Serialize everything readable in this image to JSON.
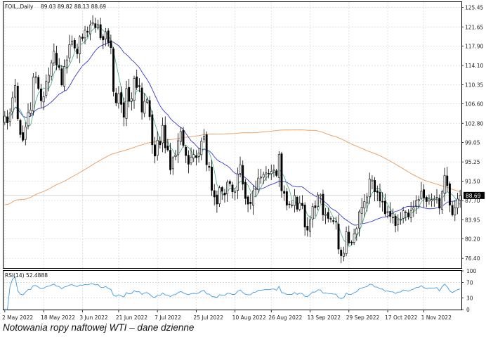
{
  "chart_data": [
    {
      "type": "candlestick",
      "info": {
        "symbol": "FOIL,,Daily",
        "ohlc": "89.03 89.82 88.13 88.69"
      },
      "y_ticks": [
        "125.45",
        "121.65",
        "117.90",
        "114.10",
        "110.35",
        "106.60",
        "102.80",
        "99.05",
        "95.25",
        "91.50",
        "87.70",
        "83.95",
        "80.20",
        "76.40"
      ],
      "ylim": [
        74.5,
        126.5
      ],
      "last_price_label": "88.69",
      "x_labels": [
        "2 May 2022",
        "18 May 2022",
        "3 Jun 2022",
        "21 Jun 2022",
        "7 Jul 2022",
        "25 Jul 2022",
        "10 Aug 2022",
        "26 Aug 2022",
        "13 Sep 2022",
        "29 Sep 2022",
        "17 Oct 2022",
        "1 Nov 2022"
      ],
      "close": [
        104.2,
        102.9,
        104.8,
        107.8,
        110.2,
        103.7,
        100.6,
        99.5,
        102.1,
        104.9,
        105.4,
        111.8,
        111.9,
        109.6,
        107.2,
        108.0,
        111.0,
        112.2,
        114.6,
        116.9,
        114.2,
        113.7,
        110.3,
        113.9,
        115.2,
        118.2,
        118.9,
        117.5,
        116.4,
        119.7,
        119.4,
        121.0,
        120.6,
        122.0,
        122.5,
        121.5,
        122.1,
        119.5,
        119.1,
        120.7,
        118.6,
        117.6,
        109.0,
        106.8,
        108.6,
        106.5,
        104.0,
        109.6,
        107.1,
        107.6,
        111.6,
        109.8,
        110.0,
        105.0,
        107.1,
        107.5,
        104.1,
        98.6,
        96.4,
        99.5,
        98.6,
        102.4,
        98.0,
        97.6,
        93.7,
        96.1,
        96.6,
        99.4,
        101.2,
        98.5,
        96.5,
        94.8,
        96.2,
        96.7,
        96.1,
        97.0,
        99.3,
        100.3,
        94.7,
        94.2,
        89.7,
        88.4,
        87.0,
        90.2,
        89.5,
        88.8,
        91.3,
        91.0,
        89.4,
        89.5,
        92.9,
        94.7,
        90.9,
        88.1,
        87.0,
        87.1,
        89.6,
        90.1,
        92.1,
        92.3,
        92.8,
        93.1,
        92.9,
        93.4,
        93.7,
        92.6,
        96.7,
        89.6,
        89.1,
        86.8,
        86.9,
        86.8,
        88.7,
        86.0,
        87.2,
        86.7,
        82.5,
        81.9,
        83.9,
        86.5,
        86.3,
        88.8,
        88.8,
        84.9,
        85.0,
        84.2,
        84.1,
        83.6,
        83.5,
        78.2,
        76.9,
        77.4,
        81.6,
        79.4,
        79.5,
        81.2,
        82.2,
        85.5,
        86.4,
        87.5,
        88.4,
        91.9,
        91.7,
        89.4,
        89.3,
        87.6,
        87.4,
        85.1,
        85.5,
        84.6,
        84.5,
        82.8,
        83.9,
        84.0,
        85.7,
        85.4,
        84.5,
        85.7,
        86.3,
        87.7,
        87.9,
        89.5,
        88.2,
        87.5,
        88.0,
        87.9,
        88.0,
        88.3,
        86.2,
        89.4,
        92.6,
        90.6,
        86.8,
        84.9,
        86.3,
        88.0,
        88.7
      ],
      "indicator": {
        "label": "RSI(14) 52.4888",
        "levels": [
          "100",
          "70",
          "30",
          "0"
        ],
        "ylim": [
          0,
          100
        ]
      },
      "colors": {
        "ma_fast": "#4db38c",
        "ma_mid": "#3a3acc",
        "ma_slow": "#e89a5a",
        "rsi": "#3d9be0",
        "candle": "#000000"
      }
    }
  ],
  "caption": "Notowania ropy naftowej WTI – dane dzienne"
}
